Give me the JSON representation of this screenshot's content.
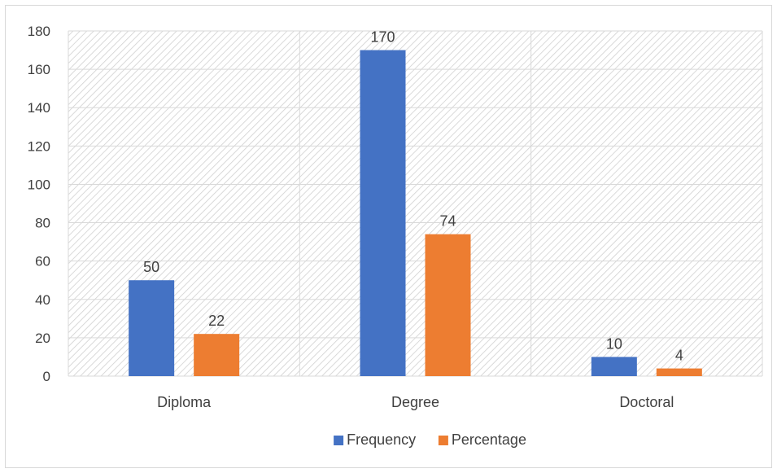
{
  "chart_data": {
    "type": "bar",
    "categories": [
      "Diploma",
      "Degree",
      "Doctoral"
    ],
    "series": [
      {
        "name": "Frequency",
        "values": [
          50,
          170,
          10
        ],
        "color": "#4472C4"
      },
      {
        "name": "Percentage",
        "values": [
          22,
          74,
          4
        ],
        "color": "#ED7D31"
      }
    ],
    "ylim": [
      0,
      180
    ],
    "yticks": [
      0,
      20,
      40,
      60,
      80,
      100,
      120,
      140,
      160,
      180
    ],
    "grid": true,
    "legend": "bottom",
    "data_labels": true,
    "title": "",
    "xlabel": "",
    "ylabel": ""
  }
}
